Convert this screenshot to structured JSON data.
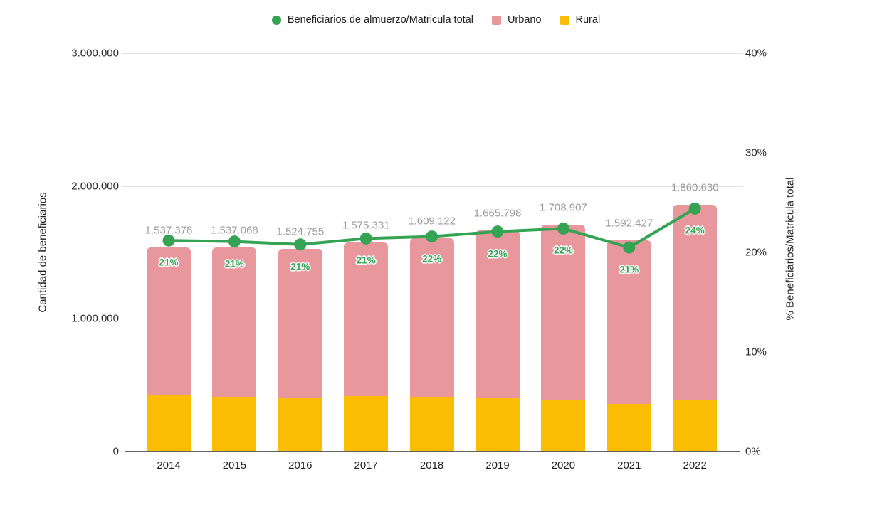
{
  "legend": {
    "items": [
      {
        "label": "Beneficiarios de almuerzo/Matricula total",
        "color": "#34a353",
        "shape": "circle"
      },
      {
        "label": "Urbano",
        "color": "#e8979c",
        "shape": "square"
      },
      {
        "label": "Rural",
        "color": "#fbbc04",
        "shape": "square"
      }
    ]
  },
  "axes": {
    "left": {
      "title": "Cantidad de beneficiarios",
      "ticks": [
        "0",
        "1.000.000",
        "2.000.000",
        "3.000.000"
      ],
      "tick_values": [
        0,
        1000000,
        2000000,
        3000000
      ]
    },
    "right": {
      "title": "% Beneficiarios/Matricula total",
      "ticks": [
        "0%",
        "10%",
        "20%",
        "30%",
        "40%"
      ],
      "tick_values": [
        0,
        10,
        20,
        30,
        40
      ]
    }
  },
  "chart_data": {
    "type": "combo",
    "categories": [
      "2014",
      "2015",
      "2016",
      "2017",
      "2018",
      "2019",
      "2020",
      "2021",
      "2022"
    ],
    "left_axis_range": [
      0,
      3000000
    ],
    "right_axis_range": [
      0,
      40
    ],
    "grid": "horizontal-only",
    "legend_position": "top-center",
    "bar_totals": [
      1537378,
      1537068,
      1524755,
      1575331,
      1609122,
      1665798,
      1708907,
      1592427,
      1860630
    ],
    "bar_total_labels": [
      "1.537.378",
      "1.537.068",
      "1.524.755",
      "1.575.331",
      "1.609.122",
      "1.665.798",
      "1.708.907",
      "1.592.427",
      "1.860.630"
    ],
    "series": [
      {
        "name": "Urbano",
        "type": "bar",
        "stack_position": "top",
        "color": "#e8979c",
        "values_note": "bar total minus Rural"
      },
      {
        "name": "Rural",
        "type": "bar",
        "stack_position": "bottom",
        "color": "#fbbc04",
        "values_estimated": [
          421000,
          413000,
          407000,
          418000,
          413000,
          407000,
          391000,
          359000,
          391000
        ]
      },
      {
        "name": "Beneficiarios de almuerzo/Matricula total",
        "type": "line",
        "axis": "right",
        "color": "#34a353",
        "point_labels": [
          "21%",
          "21%",
          "21%",
          "21%",
          "22%",
          "22%",
          "22%",
          "21%",
          "24%"
        ],
        "values_estimated_pct": [
          21.2,
          21.1,
          20.8,
          21.4,
          21.6,
          22.1,
          22.4,
          20.5,
          24.4
        ]
      }
    ],
    "colors": {
      "gridline": "#e2e2e2",
      "baseline": "#616161",
      "total_label": "#9c9c9c",
      "pct_label": "#34a353"
    }
  }
}
